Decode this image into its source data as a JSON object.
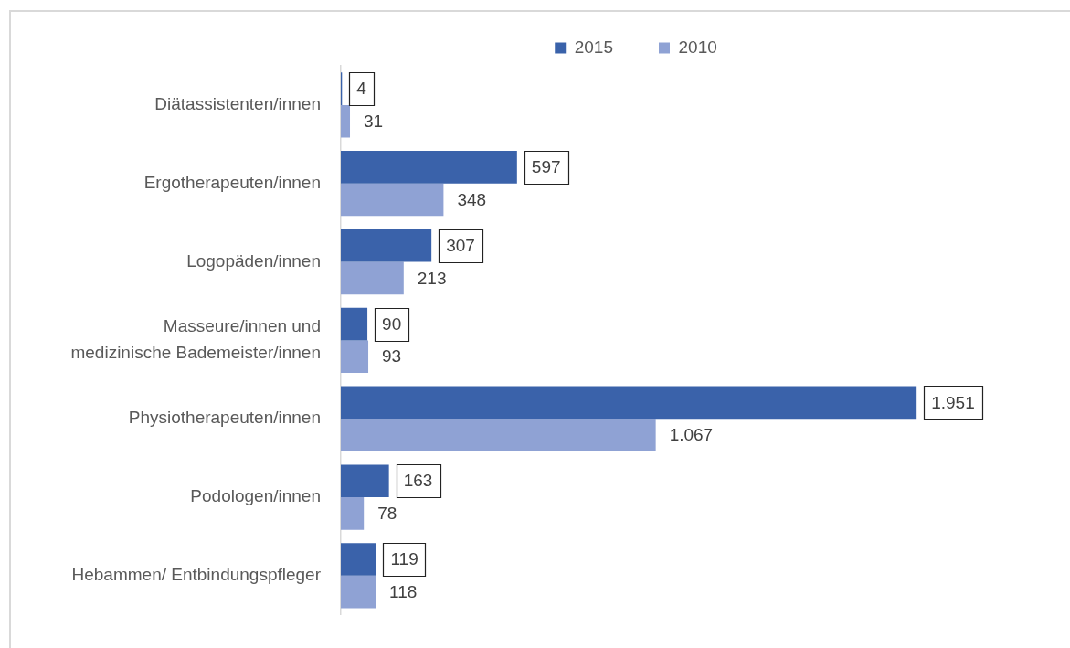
{
  "chart_data": {
    "type": "bar",
    "orientation": "horizontal",
    "legend": "top",
    "tick_labels": "y",
    "categories": [
      "Diätassistenten/innen",
      "Ergotherapeuten/innen",
      "Logopäden/innen",
      "Masseure/innen und medizinische Bademeister/innen",
      "Physiotherapeuten/innen",
      "Podologen/innen",
      "Hebammen/ Entbindungspfleger"
    ],
    "series": [
      {
        "name": "2015",
        "color": "#3a62aa",
        "values": [
          4,
          597,
          307,
          90,
          1951,
          163,
          119
        ],
        "value_labels": [
          "4",
          "597",
          "307",
          "90",
          "1.951",
          "163",
          "119"
        ]
      },
      {
        "name": "2010",
        "color": "#8fa2d4",
        "values": [
          31,
          348,
          213,
          93,
          1067,
          78,
          118
        ],
        "value_labels": [
          "31",
          "348",
          "213",
          "93",
          "1.067",
          "78",
          "118"
        ]
      }
    ]
  }
}
